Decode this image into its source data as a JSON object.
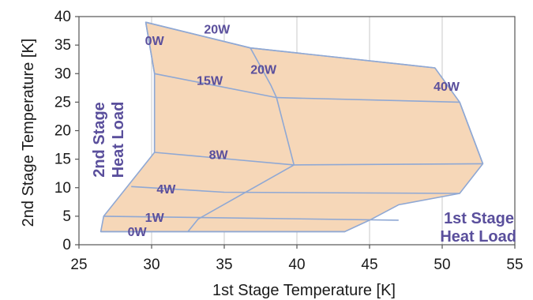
{
  "chart_data": {
    "type": "area",
    "xlabel": "1st Stage Temperature [K]",
    "ylabel": "2nd Stage Temperature [K]",
    "xlim": [
      25,
      55
    ],
    "ylim": [
      0,
      40
    ],
    "xticks": [
      "25",
      "30",
      "35",
      "40",
      "45",
      "50",
      "55"
    ],
    "yticks": [
      "0",
      "5",
      "10",
      "15",
      "20",
      "25",
      "30",
      "35",
      "40"
    ],
    "grid": "vertical",
    "colors": {
      "fill": "#f6d7b8",
      "line": "#8fa8d4",
      "label": "#5a4f9c",
      "grid": "#c8c8c8"
    },
    "region": [
      [
        29.6,
        39
      ],
      [
        36.8,
        34.5
      ],
      [
        49.5,
        31
      ],
      [
        51.2,
        25
      ],
      [
        52.8,
        14.2
      ],
      [
        51.2,
        9
      ],
      [
        47,
        7
      ],
      [
        45,
        4.3
      ],
      [
        43.3,
        2.3
      ],
      [
        26.5,
        2.3
      ],
      [
        26.7,
        5
      ],
      [
        30.2,
        16.2
      ],
      [
        30.2,
        30
      ],
      [
        29.6,
        39
      ]
    ],
    "first_stage_curves": [
      {
        "name": "0W",
        "points": [
          [
            29.6,
            39
          ],
          [
            30.2,
            30
          ],
          [
            30.2,
            16.2
          ]
        ]
      },
      {
        "name": "20W",
        "points": [
          [
            36.8,
            34.5
          ],
          [
            38.2,
            28
          ],
          [
            38.6,
            25.8
          ],
          [
            39.8,
            14
          ]
        ]
      },
      {
        "name": "40W",
        "points": [
          [
            51.2,
            25
          ],
          [
            52.8,
            14.2
          ]
        ]
      }
    ],
    "second_stage_curves": [
      {
        "name": "20W",
        "points": [
          [
            29.6,
            39
          ],
          [
            36.8,
            34.5
          ],
          [
            49.5,
            31
          ]
        ]
      },
      {
        "name": "15W",
        "points": [
          [
            30.2,
            30
          ],
          [
            38.6,
            25.8
          ],
          [
            51.2,
            25
          ]
        ]
      },
      {
        "name": "8W",
        "points": [
          [
            30.2,
            16.2
          ],
          [
            39.8,
            14
          ],
          [
            52.8,
            14.2
          ]
        ]
      },
      {
        "name": "4W",
        "points": [
          [
            28.6,
            10.2
          ],
          [
            35,
            9.2
          ],
          [
            51.2,
            9
          ]
        ]
      },
      {
        "name": "1W",
        "points": [
          [
            26.7,
            5
          ],
          [
            47,
            4.3
          ]
        ]
      },
      {
        "name": "0W",
        "points": [
          [
            26.5,
            2.3
          ],
          [
            43.3,
            2.3
          ]
        ]
      }
    ],
    "extra_lines": [
      {
        "points": [
          [
            32.5,
            2.3
          ],
          [
            33.2,
            4.5
          ],
          [
            39.8,
            14
          ]
        ]
      }
    ],
    "labels": [
      {
        "text": "0W",
        "x": 30.2,
        "y": 35,
        "anchor": "middle"
      },
      {
        "text": "20W",
        "x": 34.5,
        "y": 37,
        "anchor": "middle"
      },
      {
        "text": "20W",
        "x": 37.7,
        "y": 30,
        "anchor": "middle"
      },
      {
        "text": "15W",
        "x": 34.0,
        "y": 28,
        "anchor": "middle"
      },
      {
        "text": "40W",
        "x": 50.3,
        "y": 27,
        "anchor": "middle"
      },
      {
        "text": "8W",
        "x": 34.6,
        "y": 15,
        "anchor": "middle"
      },
      {
        "text": "4W",
        "x": 31.0,
        "y": 9,
        "anchor": "middle"
      },
      {
        "text": "1W",
        "x": 30.2,
        "y": 4,
        "anchor": "middle"
      },
      {
        "text": "0W",
        "x": 29.0,
        "y": 1.5,
        "anchor": "middle"
      }
    ],
    "stage_labels": {
      "second": [
        "2nd Stage",
        "Heat Load"
      ],
      "first": [
        "1st Stage",
        "Heat Load"
      ]
    }
  }
}
